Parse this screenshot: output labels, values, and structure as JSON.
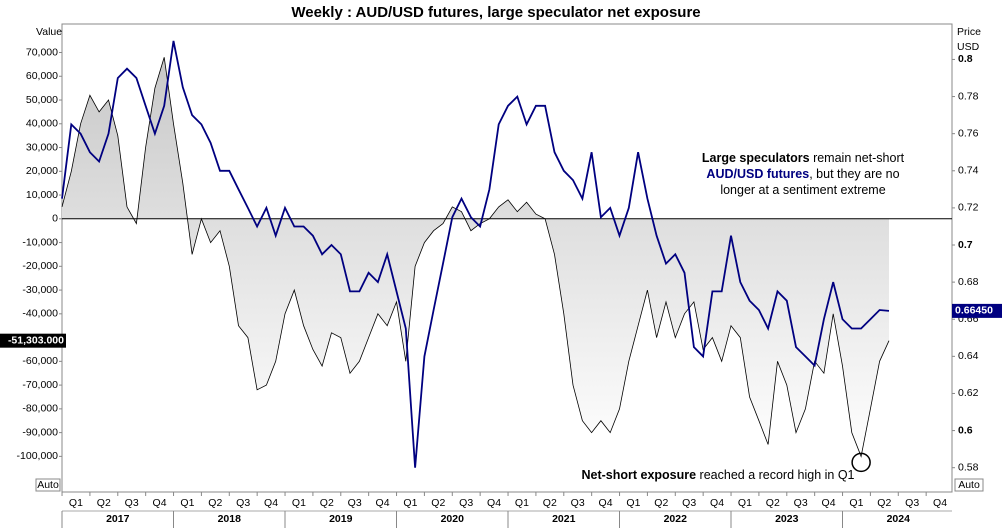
{
  "chart_data": {
    "type": "line",
    "title": "Weekly : AUD/USD futures, large speculator net exposure",
    "y_axis_label": "Value",
    "y2_axis_label": [
      "Price",
      "USD"
    ],
    "scale_mode": [
      "Auto",
      "Auto"
    ],
    "x": [
      2017,
      2017.083,
      2017.167,
      2017.25,
      2017.333,
      2017.417,
      2017.5,
      2017.583,
      2017.667,
      2017.75,
      2017.833,
      2017.917,
      2018,
      2018.083,
      2018.167,
      2018.25,
      2018.333,
      2018.417,
      2018.5,
      2018.583,
      2018.667,
      2018.75,
      2018.833,
      2018.917,
      2019,
      2019.083,
      2019.167,
      2019.25,
      2019.333,
      2019.417,
      2019.5,
      2019.583,
      2019.667,
      2019.75,
      2019.833,
      2019.917,
      2020,
      2020.083,
      2020.167,
      2020.25,
      2020.333,
      2020.417,
      2020.5,
      2020.583,
      2020.667,
      2020.75,
      2020.833,
      2020.917,
      2021,
      2021.083,
      2021.167,
      2021.25,
      2021.333,
      2021.417,
      2021.5,
      2021.583,
      2021.667,
      2021.75,
      2021.833,
      2021.917,
      2022,
      2022.083,
      2022.167,
      2022.25,
      2022.333,
      2022.417,
      2022.5,
      2022.583,
      2022.667,
      2022.75,
      2022.833,
      2022.917,
      2023,
      2023.083,
      2023.167,
      2023.25,
      2023.333,
      2023.417,
      2023.5,
      2023.583,
      2023.667,
      2023.75,
      2023.833,
      2023.917,
      2024,
      2024.083,
      2024.167,
      2024.25,
      2024.333,
      2024.417
    ],
    "series": [
      {
        "color": "#000000",
        "area": true,
        "values": [
          5000,
          20000,
          40000,
          52000,
          45000,
          50000,
          35000,
          5000,
          -2000,
          30000,
          55000,
          68000,
          40000,
          15000,
          -15000,
          0,
          -10000,
          -5000,
          -20000,
          -45000,
          -50000,
          -72000,
          -70000,
          -60000,
          -40000,
          -30000,
          -45000,
          -55000,
          -62000,
          -48000,
          -50000,
          -65000,
          -60000,
          -50000,
          -40000,
          -45000,
          -35000,
          -60000,
          -20000,
          -10000,
          -5000,
          -2000,
          5000,
          3000,
          -5000,
          -2000,
          0,
          5000,
          8000,
          3000,
          7000,
          2000,
          0,
          -15000,
          -40000,
          -70000,
          -85000,
          -90000,
          -85000,
          -90000,
          -80000,
          -60000,
          -45000,
          -30000,
          -50000,
          -35000,
          -50000,
          -40000,
          -35000,
          -55000,
          -50000,
          -60000,
          -45000,
          -50000,
          -75000,
          -85000,
          -95000,
          -60000,
          -70000,
          -90000,
          -80000,
          -60000,
          -65000,
          -40000,
          -62000,
          -90000,
          -100000,
          -80000,
          -60000,
          -51303
        ]
      },
      {
        "color": "#000080",
        "axis": "y2",
        "values": [
          0.725,
          0.765,
          0.76,
          0.75,
          0.745,
          0.76,
          0.79,
          0.795,
          0.79,
          0.775,
          0.76,
          0.775,
          0.81,
          0.785,
          0.77,
          0.765,
          0.755,
          0.74,
          0.74,
          0.73,
          0.72,
          0.71,
          0.72,
          0.705,
          0.72,
          0.71,
          0.71,
          0.705,
          0.695,
          0.7,
          0.695,
          0.675,
          0.675,
          0.685,
          0.68,
          0.695,
          0.675,
          0.655,
          0.58,
          0.64,
          0.665,
          0.69,
          0.715,
          0.725,
          0.715,
          0.71,
          0.73,
          0.765,
          0.775,
          0.78,
          0.765,
          0.775,
          0.775,
          0.75,
          0.74,
          0.735,
          0.725,
          0.75,
          0.715,
          0.72,
          0.705,
          0.72,
          0.75,
          0.725,
          0.705,
          0.69,
          0.695,
          0.685,
          0.645,
          0.64,
          0.675,
          0.675,
          0.705,
          0.68,
          0.67,
          0.665,
          0.655,
          0.675,
          0.67,
          0.645,
          0.64,
          0.635,
          0.66,
          0.68,
          0.66,
          0.655,
          0.655,
          0.66,
          0.665,
          0.6645
        ]
      }
    ],
    "last_values": [
      {
        "value": -51303,
        "label": "-51,303.000"
      },
      {
        "value": 0.6645,
        "label": "0.66450"
      }
    ],
    "xlim": [
      2017,
      2025
    ],
    "ylim": [
      -115000,
      82000
    ],
    "y2lim": [
      0.5669,
      0.8191
    ],
    "xticks": [
      {
        "value": 2017.125,
        "label": "Q1"
      },
      {
        "value": 2017.375,
        "label": "Q2"
      },
      {
        "value": 2017.625,
        "label": "Q3"
      },
      {
        "value": 2017.875,
        "label": "Q4"
      },
      {
        "value": 2018.125,
        "label": "Q1"
      },
      {
        "value": 2018.375,
        "label": "Q2"
      },
      {
        "value": 2018.625,
        "label": "Q3"
      },
      {
        "value": 2018.875,
        "label": "Q4"
      },
      {
        "value": 2019.125,
        "label": "Q1"
      },
      {
        "value": 2019.375,
        "label": "Q2"
      },
      {
        "value": 2019.625,
        "label": "Q3"
      },
      {
        "value": 2019.875,
        "label": "Q4"
      },
      {
        "value": 2020.125,
        "label": "Q1"
      },
      {
        "value": 2020.375,
        "label": "Q2"
      },
      {
        "value": 2020.625,
        "label": "Q3"
      },
      {
        "value": 2020.875,
        "label": "Q4"
      },
      {
        "value": 2021.125,
        "label": "Q1"
      },
      {
        "value": 2021.375,
        "label": "Q2"
      },
      {
        "value": 2021.625,
        "label": "Q3"
      },
      {
        "value": 2021.875,
        "label": "Q4"
      },
      {
        "value": 2022.125,
        "label": "Q1"
      },
      {
        "value": 2022.375,
        "label": "Q2"
      },
      {
        "value": 2022.625,
        "label": "Q3"
      },
      {
        "value": 2022.875,
        "label": "Q4"
      },
      {
        "value": 2023.125,
        "label": "Q1"
      },
      {
        "value": 2023.375,
        "label": "Q2"
      },
      {
        "value": 2023.625,
        "label": "Q3"
      },
      {
        "value": 2023.875,
        "label": "Q4"
      },
      {
        "value": 2024.125,
        "label": "Q1"
      },
      {
        "value": 2024.375,
        "label": "Q2"
      },
      {
        "value": 2024.625,
        "label": "Q3"
      },
      {
        "value": 2024.875,
        "label": "Q4"
      }
    ],
    "x_groups": [
      {
        "value": 2017.5,
        "label": "2017"
      },
      {
        "value": 2018.5,
        "label": "2018"
      },
      {
        "value": 2019.5,
        "label": "2019"
      },
      {
        "value": 2020.5,
        "label": "2020"
      },
      {
        "value": 2021.5,
        "label": "2021"
      },
      {
        "value": 2022.5,
        "label": "2022"
      },
      {
        "value": 2023.5,
        "label": "2023"
      },
      {
        "value": 2024.5,
        "label": "2024"
      }
    ],
    "yticks": [
      {
        "value": 70000,
        "label": "70,000"
      },
      {
        "value": 60000,
        "label": "60,000"
      },
      {
        "value": 50000,
        "label": "50,000"
      },
      {
        "value": 40000,
        "label": "40,000"
      },
      {
        "value": 30000,
        "label": "30,000"
      },
      {
        "value": 20000,
        "label": "20,000"
      },
      {
        "value": 10000,
        "label": "10,000"
      },
      0,
      {
        "value": -10000,
        "label": "-10,000"
      },
      {
        "value": -20000,
        "label": "-20,000"
      },
      {
        "value": -30000,
        "label": "-30,000"
      },
      {
        "value": -40000,
        "label": "-40,000"
      },
      {
        "value": -60000,
        "label": "-60,000"
      },
      {
        "value": -70000,
        "label": "-70,000"
      },
      {
        "value": -80000,
        "label": "-80,000"
      },
      {
        "value": -90000,
        "label": "-90,000"
      },
      {
        "value": -100000,
        "label": "-100,000"
      }
    ],
    "y2ticks": [
      0.8,
      0.78,
      0.76,
      0.74,
      0.72,
      0.7,
      0.68,
      0.66,
      0.64,
      0.62,
      0.6,
      0.58
    ],
    "annotations": [
      {
        "lines": [
          [
            "Large speculators",
            " remain net-short"
          ],
          [
            "AUD/USD futures",
            ", but they are no"
          ],
          [
            "longer at a sentiment extreme"
          ]
        ]
      },
      {
        "lines": [
          [
            "Net-short exposure",
            " reached a record high in Q1"
          ]
        ]
      }
    ]
  }
}
